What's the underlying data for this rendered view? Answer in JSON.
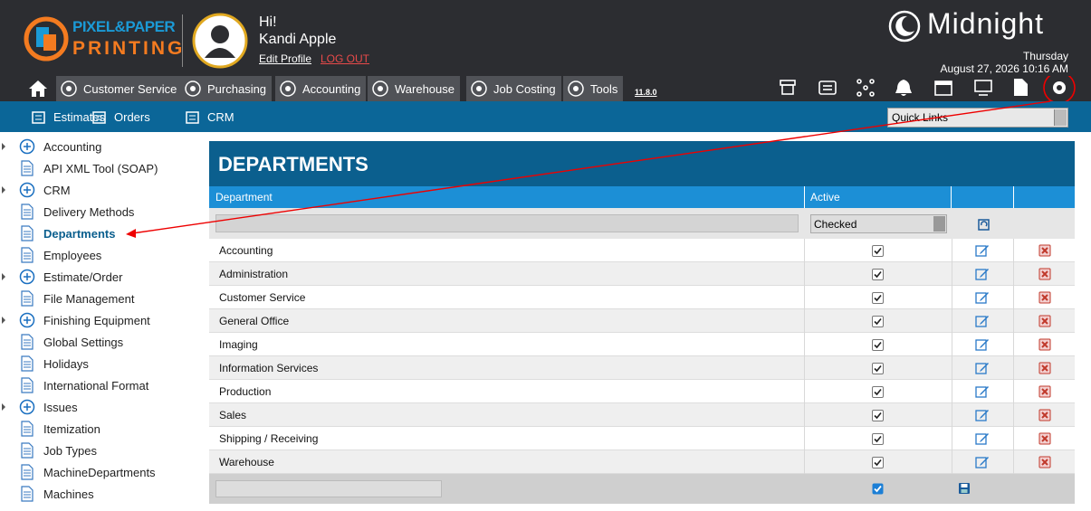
{
  "header": {
    "logo_top": "PIXEL&PAPER",
    "logo_bottom": "PRINTING",
    "greeting": "Hi!",
    "user_name": "Kandi Apple",
    "edit_profile": "Edit Profile",
    "logout": "LOG OUT",
    "brand": "Midnight",
    "day": "Thursday",
    "datetime": "August 27, 2026 10:16 AM"
  },
  "nav": {
    "tabs": [
      "Customer Service",
      "Purchasing",
      "Accounting",
      "Warehouse",
      "Job Costing",
      "Tools"
    ],
    "version": "11.8.0"
  },
  "subnav": {
    "links": [
      "Estimates",
      "Orders",
      "CRM"
    ],
    "quick_links": "Quick Links"
  },
  "sidebar": {
    "active": 4,
    "items": [
      {
        "label": "Accounting",
        "expandable": true
      },
      {
        "label": "API XML Tool (SOAP)",
        "expandable": false
      },
      {
        "label": "CRM",
        "expandable": true
      },
      {
        "label": "Delivery Methods",
        "expandable": false
      },
      {
        "label": "Departments",
        "expandable": false
      },
      {
        "label": "Employees",
        "expandable": false
      },
      {
        "label": "Estimate/Order",
        "expandable": true
      },
      {
        "label": "File Management",
        "expandable": false
      },
      {
        "label": "Finishing Equipment",
        "expandable": true
      },
      {
        "label": "Global Settings",
        "expandable": false
      },
      {
        "label": "Holidays",
        "expandable": false
      },
      {
        "label": "International Format",
        "expandable": false
      },
      {
        "label": "Issues",
        "expandable": true
      },
      {
        "label": "Itemization",
        "expandable": false
      },
      {
        "label": "Job Types",
        "expandable": false
      },
      {
        "label": "MachineDepartments",
        "expandable": false
      },
      {
        "label": "Machines",
        "expandable": false
      }
    ]
  },
  "table": {
    "title": "DEPARTMENTS",
    "columns": [
      "Department",
      "Active"
    ],
    "filter_active": "Checked",
    "rows": [
      "Accounting",
      "Administration",
      "Customer Service",
      "General Office",
      "Imaging",
      "Information Services",
      "Production",
      "Sales",
      "Shipping / Receiving",
      "Warehouse"
    ]
  }
}
